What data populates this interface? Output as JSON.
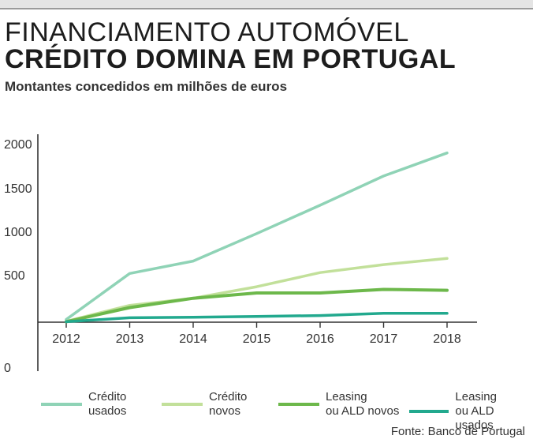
{
  "header": {
    "title_line1": "FINANCIAMENTO AUTOMÓVEL",
    "title_line2": "CRÉDITO DOMINA EM PORTUGAL",
    "subtitle": "Montantes concedidos em milhões de euros"
  },
  "source": "Fonte: Banco de Portugal",
  "chart_data": {
    "type": "line",
    "title": "FINANCIAMENTO AUTOMÓVEL CRÉDITO DOMINA EM PORTUGAL",
    "subtitle": "Montantes concedidos em milhões de euros",
    "x": [
      "2012",
      "2013",
      "2014",
      "2015",
      "2016",
      "2017",
      "2018"
    ],
    "y_ticks": [
      "2000",
      "1500",
      "1000",
      "500",
      "0"
    ],
    "ylim": [
      0,
      2000
    ],
    "grid": false,
    "legend_position": "bottom",
    "series": [
      {
        "name": "Crédito usados",
        "label_lines": [
          "Crédito",
          "usados"
        ],
        "color": "#8fd3b6",
        "width": 3.5,
        "values": [
          30,
          550,
          690,
          1000,
          1320,
          1650,
          1910
        ]
      },
      {
        "name": "Crédito novos",
        "label_lines": [
          "Crédito",
          "novos"
        ],
        "color": "#c2e09a",
        "width": 3.5,
        "values": [
          10,
          190,
          270,
          400,
          560,
          650,
          720
        ]
      },
      {
        "name": "Leasing ou ALD novos",
        "label_lines": [
          "Leasing",
          "ou ALD novos"
        ],
        "color": "#6db84b",
        "width": 4,
        "values": [
          5,
          165,
          270,
          330,
          330,
          370,
          360
        ]
      },
      {
        "name": "Leasing ou ALD usados",
        "label_lines": [
          "Leasing",
          "ou ALD usados"
        ],
        "color": "#22a98e",
        "width": 3.5,
        "values": [
          5,
          50,
          55,
          65,
          75,
          100,
          100
        ]
      }
    ]
  }
}
